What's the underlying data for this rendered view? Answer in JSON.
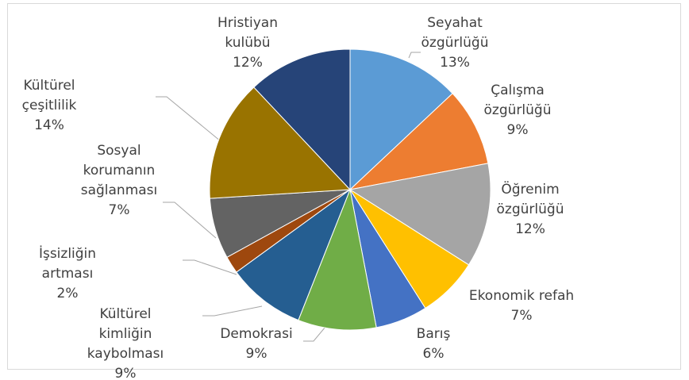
{
  "chart_data": {
    "type": "pie",
    "categories": [
      "Seyahat\nözgürlüğü",
      "Çalışma\nözgürlüğü",
      "Öğrenim\nözgürlüğü",
      "Ekonomik refah",
      "Barış",
      "Demokrasi",
      "Kültürel\nkimliğin\nkaybolması",
      "İşsizliğin\nartması",
      "Sosyal\nkorumanın\nsağlanması",
      "Kültürel\nçeşitlilik",
      "Hristiyan\nkulübü"
    ],
    "values": [
      13,
      9,
      12,
      7,
      6,
      9,
      9,
      2,
      7,
      14,
      12
    ],
    "value_labels": [
      "13%",
      "9%",
      "12%",
      "7%",
      "6%",
      "9%",
      "9%",
      "2%",
      "7%",
      "14%",
      "12%"
    ],
    "colors": [
      "#5b9bd5",
      "#ed7d31",
      "#a5a5a5",
      "#ffc000",
      "#4472c4",
      "#70ad47",
      "#255e91",
      "#9e480e",
      "#636363",
      "#997300",
      "#264478"
    ]
  }
}
